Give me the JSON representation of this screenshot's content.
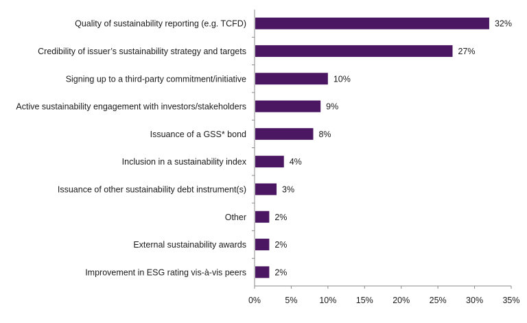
{
  "chart_data": {
    "type": "bar",
    "orientation": "horizontal",
    "title": "",
    "xlabel": "",
    "ylabel": "",
    "xlim": [
      0,
      35
    ],
    "grid": false,
    "bar_color": "#4b1763",
    "categories": [
      "Quality of sustainability reporting (e.g. TCFD)",
      "Credibility of issuer’s sustainability strategy and targets",
      "Signing up to a third-party commitment/initiative",
      "Active sustainability engagement with investors/stakeholders",
      "Issuance of a GSS* bond",
      "Inclusion in a sustainability index",
      "Issuance of other sustainability debt instrument(s)",
      "Other",
      "External sustainability awards",
      "Improvement in ESG rating vis-à-vis peers"
    ],
    "values": [
      32,
      27,
      10,
      9,
      8,
      4,
      3,
      2,
      2,
      2
    ],
    "value_labels": [
      "32%",
      "27%",
      "10%",
      "9%",
      "8%",
      "4%",
      "3%",
      "2%",
      "2%",
      "2%"
    ],
    "ticks": [
      0,
      5,
      10,
      15,
      20,
      25,
      30,
      35
    ],
    "tick_labels": [
      "0%",
      "5%",
      "10%",
      "15%",
      "20%",
      "25%",
      "30%",
      "35%"
    ]
  }
}
